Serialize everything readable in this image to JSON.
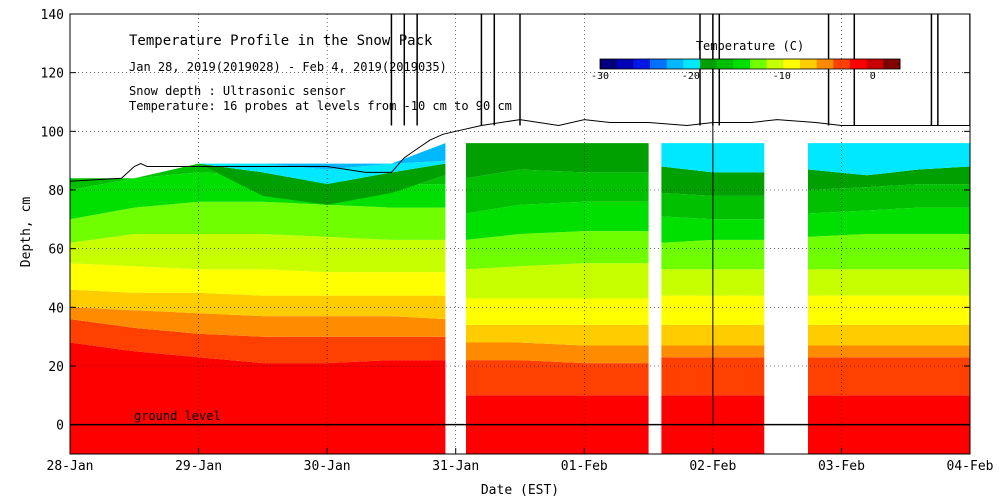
{
  "chart_data": {
    "type": "heatmap",
    "title": "Temperature Profile in the Snow Pack",
    "subtitle": "Jan 28, 2019(2019028) - Feb  4, 2019(2019035)",
    "info_lines": [
      "Snow depth : Ultrasonic sensor",
      "Temperature: 16 probes at levels from -10 cm to 90 cm"
    ],
    "xlabel": "Date (EST)",
    "ylabel": "Depth, cm",
    "x_ticks": [
      "28-Jan",
      "29-Jan",
      "30-Jan",
      "31-Jan",
      "01-Feb",
      "02-Feb",
      "03-Feb",
      "04-Feb"
    ],
    "y_ticks": [
      0,
      20,
      40,
      60,
      80,
      100,
      120,
      140
    ],
    "xlim_days": [
      0,
      7
    ],
    "ylim": [
      -10,
      140
    ],
    "grid": true,
    "ground_label": "ground level",
    "colorbar": {
      "title": "Temperature (C)",
      "ticks": [
        -30,
        -20,
        -10,
        0
      ],
      "range": [
        -30,
        3
      ],
      "colors": [
        "#00007a",
        "#0000b4",
        "#0018e6",
        "#0070ff",
        "#00b8ff",
        "#00e8ff",
        "#00a000",
        "#00c000",
        "#00e000",
        "#70ff00",
        "#c8ff00",
        "#ffff00",
        "#ffcc00",
        "#ff8c00",
        "#ff4000",
        "#ff0000",
        "#c80000",
        "#800000"
      ]
    },
    "band_colors": [
      "#ff0000",
      "#ff4000",
      "#ff8c00",
      "#ffcc00",
      "#ffff00",
      "#c8ff00",
      "#70ff00",
      "#00e000",
      "#00c000",
      "#00a000",
      "#00e8ff",
      "#00b8ff",
      "#0070ff"
    ],
    "segments": [
      {
        "x": [
          0,
          0.5,
          1,
          1.5,
          2,
          2.5,
          2.92
        ],
        "top": [
          84,
          84,
          89,
          89,
          89,
          89,
          96
        ],
        "boundaries": [
          [
            28,
            25,
            23,
            21,
            21,
            22,
            22
          ],
          [
            36,
            33,
            31,
            30,
            30,
            30,
            30
          ],
          [
            40,
            39,
            38,
            37,
            37,
            37,
            36
          ],
          [
            46,
            45,
            45,
            44,
            44,
            44,
            44
          ],
          [
            55,
            54,
            53,
            53,
            52,
            52,
            52
          ],
          [
            62,
            65,
            65,
            65,
            64,
            63,
            63
          ],
          [
            70,
            74,
            76,
            76,
            75,
            74,
            74
          ],
          [
            80,
            84,
            86,
            85,
            83,
            82,
            82
          ],
          [
            84,
            84,
            89,
            78,
            75,
            79,
            85
          ],
          [
            84,
            84,
            89,
            86,
            82,
            86,
            89
          ],
          [
            84,
            84,
            89,
            89,
            87,
            89,
            90
          ],
          [
            84,
            84,
            89,
            89,
            89,
            89,
            96
          ]
        ]
      },
      {
        "x": [
          3.08,
          3.5,
          4.0,
          4.5
        ],
        "top": [
          96,
          96,
          96,
          96
        ],
        "boundaries": [
          [
            10,
            10,
            10,
            10
          ],
          [
            22,
            22,
            21,
            21
          ],
          [
            28,
            28,
            27,
            27
          ],
          [
            34,
            34,
            34,
            34
          ],
          [
            43,
            43,
            43,
            43
          ],
          [
            53,
            54,
            55,
            55
          ],
          [
            63,
            65,
            66,
            66
          ],
          [
            72,
            75,
            76,
            76
          ],
          [
            84,
            87,
            86,
            86
          ],
          [
            96,
            96,
            96,
            96
          ],
          [
            96,
            96,
            96,
            96
          ],
          [
            96,
            96,
            96,
            96
          ]
        ]
      },
      {
        "x": [
          4.6,
          5.0,
          5.4
        ],
        "top": [
          96,
          96,
          96
        ],
        "boundaries": [
          [
            10,
            10,
            10
          ],
          [
            23,
            23,
            23
          ],
          [
            27,
            27,
            27
          ],
          [
            34,
            34,
            34
          ],
          [
            44,
            44,
            44
          ],
          [
            53,
            53,
            53
          ],
          [
            62,
            63,
            63
          ],
          [
            71,
            70,
            70
          ],
          [
            79,
            78,
            78
          ],
          [
            88,
            86,
            86
          ],
          [
            96,
            96,
            96
          ],
          [
            96,
            96,
            96
          ]
        ]
      },
      {
        "x": [
          5.74,
          6.2,
          6.6,
          7.0
        ],
        "top": [
          96,
          96,
          96,
          96
        ],
        "boundaries": [
          [
            10,
            10,
            10,
            10
          ],
          [
            23,
            23,
            23,
            23
          ],
          [
            27,
            27,
            27,
            27
          ],
          [
            34,
            34,
            34,
            34
          ],
          [
            44,
            44,
            44,
            44
          ],
          [
            53,
            53,
            53,
            53
          ],
          [
            64,
            65,
            65,
            65
          ],
          [
            72,
            73,
            74,
            74
          ],
          [
            80,
            81,
            82,
            82
          ],
          [
            87,
            85,
            87,
            88
          ],
          [
            96,
            96,
            96,
            96
          ],
          [
            96,
            96,
            96,
            96
          ]
        ]
      }
    ],
    "snow_depth": {
      "x": [
        0,
        0.4,
        0.5,
        0.55,
        0.6,
        1.0,
        1.5,
        2.0,
        2.3,
        2.5,
        2.6,
        2.7,
        2.8,
        2.9,
        3.0,
        3.2,
        3.5,
        3.8,
        4.0,
        4.2,
        4.5,
        4.8,
        5.0,
        5.3,
        5.5,
        5.8,
        6.0,
        6.5,
        7.0,
        7.1
      ],
      "y": [
        83,
        84,
        88,
        89,
        88,
        88,
        88,
        88,
        86,
        86,
        91,
        94,
        97,
        99,
        100,
        102,
        104,
        102,
        104,
        103,
        103,
        102,
        103,
        103,
        104,
        103,
        102,
        102,
        102,
        102
      ]
    },
    "spikes_x": [
      2.5,
      2.6,
      2.7,
      3.2,
      3.3,
      3.5,
      4.9,
      5.0,
      5.05,
      5.9,
      6.1,
      6.7,
      6.75,
      7.0,
      7.05
    ],
    "probe_line_x": 5.0
  }
}
